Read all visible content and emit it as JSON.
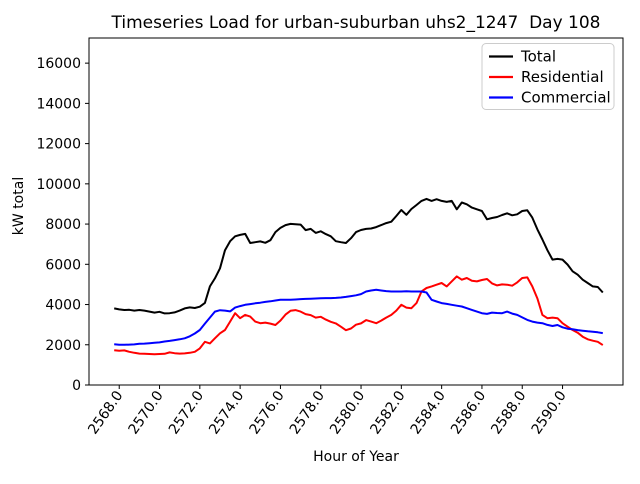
{
  "figure": {
    "background": "#ffffff"
  },
  "chart_data": {
    "type": "line",
    "title": "Timeseries Load for urban-suburban uhs2_1247  Day 108",
    "xlabel": "Hour of Year",
    "ylabel": "kW total",
    "xlim": [
      2566.5,
      2593.0
    ],
    "ylim": [
      0,
      17250
    ],
    "grid": false,
    "legend_position": "upper right",
    "x_ticks": [
      {
        "value": 2568,
        "label": "2568.0"
      },
      {
        "value": 2570,
        "label": "2570.0"
      },
      {
        "value": 2572,
        "label": "2572.0"
      },
      {
        "value": 2574,
        "label": "2574.0"
      },
      {
        "value": 2576,
        "label": "2576.0"
      },
      {
        "value": 2578,
        "label": "2578.0"
      },
      {
        "value": 2580,
        "label": "2580.0"
      },
      {
        "value": 2582,
        "label": "2582.0"
      },
      {
        "value": 2584,
        "label": "2584.0"
      },
      {
        "value": 2586,
        "label": "2586.0"
      },
      {
        "value": 2588,
        "label": "2588.0"
      },
      {
        "value": 2590,
        "label": "2590.0"
      }
    ],
    "y_ticks": [
      {
        "value": 0,
        "label": "0"
      },
      {
        "value": 2000,
        "label": "2000"
      },
      {
        "value": 4000,
        "label": "4000"
      },
      {
        "value": 6000,
        "label": "6000"
      },
      {
        "value": 8000,
        "label": "8000"
      },
      {
        "value": 10000,
        "label": "10000"
      },
      {
        "value": 12000,
        "label": "12000"
      },
      {
        "value": 14000,
        "label": "14000"
      },
      {
        "value": 16000,
        "label": "16000"
      }
    ],
    "x": [
      2567.75,
      2568.0,
      2568.25,
      2568.5,
      2568.75,
      2569.0,
      2569.25,
      2569.5,
      2569.75,
      2570.0,
      2570.25,
      2570.5,
      2570.75,
      2571.0,
      2571.25,
      2571.5,
      2571.75,
      2572.0,
      2572.25,
      2572.5,
      2572.75,
      2573.0,
      2573.25,
      2573.5,
      2573.75,
      2574.0,
      2574.25,
      2574.5,
      2574.75,
      2575.0,
      2575.25,
      2575.5,
      2575.75,
      2576.0,
      2576.25,
      2576.5,
      2576.75,
      2577.0,
      2577.25,
      2577.5,
      2577.75,
      2578.0,
      2578.25,
      2578.5,
      2578.75,
      2579.0,
      2579.25,
      2579.5,
      2579.75,
      2580.0,
      2580.25,
      2580.5,
      2580.75,
      2581.0,
      2581.25,
      2581.5,
      2581.75,
      2582.0,
      2582.25,
      2582.5,
      2582.75,
      2583.0,
      2583.25,
      2583.5,
      2583.75,
      2584.0,
      2584.25,
      2584.5,
      2584.75,
      2585.0,
      2585.25,
      2585.5,
      2585.75,
      2586.0,
      2586.25,
      2586.5,
      2586.75,
      2587.0,
      2587.25,
      2587.5,
      2587.75,
      2588.0,
      2588.25,
      2588.5,
      2588.75,
      2589.0,
      2589.25,
      2589.5,
      2589.75,
      2590.0,
      2590.25,
      2590.5,
      2590.75,
      2591.0,
      2591.25,
      2591.5,
      2591.75,
      2592.0
    ],
    "series": [
      {
        "name": "Total",
        "color": "#000000",
        "values": [
          3810,
          3760,
          3730,
          3740,
          3700,
          3730,
          3700,
          3650,
          3600,
          3640,
          3560,
          3570,
          3610,
          3700,
          3810,
          3860,
          3830,
          3890,
          4080,
          4900,
          5300,
          5800,
          6700,
          7150,
          7390,
          7460,
          7510,
          7060,
          7100,
          7140,
          7070,
          7200,
          7600,
          7810,
          7950,
          8010,
          7990,
          7975,
          7700,
          7760,
          7560,
          7640,
          7500,
          7390,
          7150,
          7100,
          7060,
          7300,
          7600,
          7705,
          7760,
          7780,
          7850,
          7950,
          8050,
          8120,
          8400,
          8700,
          8460,
          8750,
          8950,
          9150,
          9250,
          9150,
          9235,
          9150,
          9100,
          9150,
          8735,
          9070,
          8985,
          8820,
          8735,
          8650,
          8235,
          8300,
          8350,
          8450,
          8535,
          8435,
          8485,
          8650,
          8685,
          8320,
          7735,
          7235,
          6700,
          6235,
          6270,
          6235,
          5985,
          5650,
          5485,
          5235,
          5070,
          4900,
          4870,
          4600
        ]
      },
      {
        "name": "Residential",
        "color": "#ff0000",
        "values": [
          1725,
          1700,
          1720,
          1650,
          1600,
          1560,
          1550,
          1540,
          1530,
          1540,
          1550,
          1620,
          1580,
          1560,
          1570,
          1600,
          1650,
          1820,
          2150,
          2070,
          2320,
          2570,
          2735,
          3150,
          3570,
          3320,
          3485,
          3400,
          3150,
          3070,
          3100,
          3050,
          2985,
          3200,
          3500,
          3690,
          3725,
          3650,
          3525,
          3475,
          3350,
          3390,
          3250,
          3140,
          3060,
          2900,
          2725,
          2810,
          3000,
          3060,
          3225,
          3150,
          3070,
          3200,
          3350,
          3485,
          3700,
          3985,
          3850,
          3820,
          4070,
          4650,
          4820,
          4900,
          4985,
          5070,
          4900,
          5150,
          5400,
          5235,
          5320,
          5180,
          5150,
          5220,
          5270,
          5050,
          4950,
          5000,
          4985,
          4935,
          5100,
          5320,
          5350,
          4900,
          4300,
          3485,
          3320,
          3350,
          3320,
          3070,
          2900,
          2735,
          2600,
          2400,
          2270,
          2200,
          2150,
          1985
        ]
      },
      {
        "name": "Commercial",
        "color": "#0000ff",
        "values": [
          2025,
          2000,
          2000,
          2010,
          2020,
          2050,
          2060,
          2080,
          2100,
          2120,
          2160,
          2190,
          2230,
          2270,
          2320,
          2420,
          2560,
          2735,
          3050,
          3350,
          3650,
          3720,
          3700,
          3660,
          3850,
          3920,
          3985,
          4020,
          4060,
          4090,
          4130,
          4160,
          4200,
          4235,
          4240,
          4235,
          4250,
          4270,
          4280,
          4290,
          4300,
          4310,
          4320,
          4320,
          4330,
          4350,
          4380,
          4420,
          4460,
          4520,
          4650,
          4700,
          4735,
          4700,
          4670,
          4650,
          4650,
          4650,
          4660,
          4650,
          4650,
          4650,
          4600,
          4235,
          4150,
          4070,
          4030,
          3985,
          3940,
          3900,
          3820,
          3735,
          3650,
          3570,
          3535,
          3600,
          3580,
          3570,
          3650,
          3550,
          3485,
          3360,
          3235,
          3150,
          3100,
          3070,
          2990,
          2935,
          2985,
          2870,
          2800,
          2770,
          2730,
          2700,
          2670,
          2650,
          2620,
          2580
        ]
      }
    ]
  }
}
